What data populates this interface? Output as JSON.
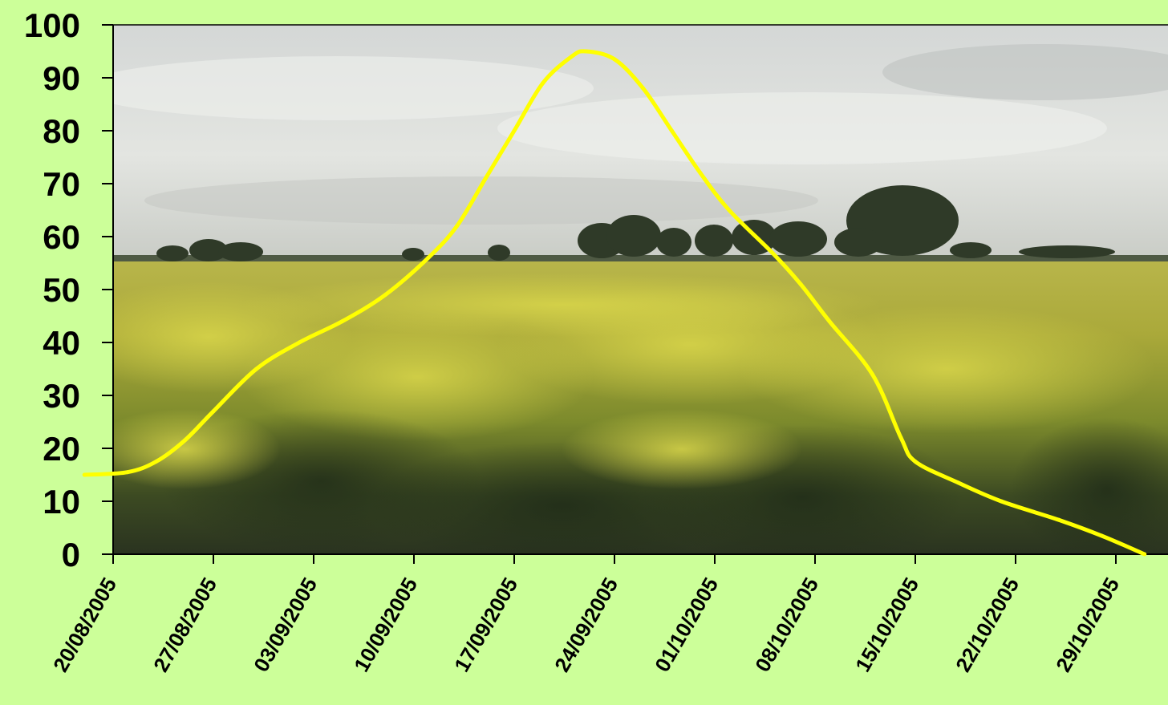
{
  "colors": {
    "background": "#CCFF99",
    "line": "#FFFF00",
    "axis": "#000000"
  },
  "chart_data": {
    "type": "line",
    "title": "",
    "xlabel": "",
    "ylabel": "",
    "background_image": "rapeseed-field-photo",
    "grid": false,
    "legend": "none",
    "x_axis": {
      "type": "date",
      "format": "DD/MM/YYYY",
      "tick_labels": [
        "20/08/2005",
        "27/08/2005",
        "03/09/2005",
        "10/09/2005",
        "17/09/2005",
        "24/09/2005",
        "01/10/2005",
        "08/10/2005",
        "15/10/2005",
        "22/10/2005",
        "29/10/2005"
      ],
      "range": [
        "19/08/2005",
        "04/11/2005"
      ]
    },
    "y_axis": {
      "ticks": [
        0,
        10,
        20,
        30,
        40,
        50,
        60,
        70,
        80,
        90,
        100
      ],
      "ylim": [
        0,
        100
      ]
    },
    "series": [
      {
        "color": "#FFFF00",
        "points": [
          {
            "x": "18/08/2005",
            "y": 15
          },
          {
            "x": "21/08/2005",
            "y": 15.5
          },
          {
            "x": "23/08/2005",
            "y": 17.5
          },
          {
            "x": "25/08/2005",
            "y": 21.5
          },
          {
            "x": "27/08/2005",
            "y": 27
          },
          {
            "x": "30/08/2005",
            "y": 35
          },
          {
            "x": "02/09/2005",
            "y": 40
          },
          {
            "x": "05/09/2005",
            "y": 44
          },
          {
            "x": "08/09/2005",
            "y": 49
          },
          {
            "x": "11/09/2005",
            "y": 56
          },
          {
            "x": "13/09/2005",
            "y": 62
          },
          {
            "x": "15/09/2005",
            "y": 71
          },
          {
            "x": "17/09/2005",
            "y": 80
          },
          {
            "x": "19/09/2005",
            "y": 89
          },
          {
            "x": "21/09/2005",
            "y": 94
          },
          {
            "x": "22/09/2005",
            "y": 95
          },
          {
            "x": "24/09/2005",
            "y": 93.5
          },
          {
            "x": "26/09/2005",
            "y": 88
          },
          {
            "x": "28/09/2005",
            "y": 80
          },
          {
            "x": "30/09/2005",
            "y": 72
          },
          {
            "x": "02/10/2005",
            "y": 65
          },
          {
            "x": "05/10/2005",
            "y": 57
          },
          {
            "x": "07/10/2005",
            "y": 51
          },
          {
            "x": "09/10/2005",
            "y": 44
          },
          {
            "x": "12/10/2005",
            "y": 34
          },
          {
            "x": "14/10/2005",
            "y": 22
          },
          {
            "x": "15/10/2005",
            "y": 17.5
          },
          {
            "x": "18/10/2005",
            "y": 13.5
          },
          {
            "x": "21/10/2005",
            "y": 10
          },
          {
            "x": "25/10/2005",
            "y": 6.5
          },
          {
            "x": "28/10/2005",
            "y": 3.5
          },
          {
            "x": "31/10/2005",
            "y": 0
          }
        ]
      }
    ]
  }
}
